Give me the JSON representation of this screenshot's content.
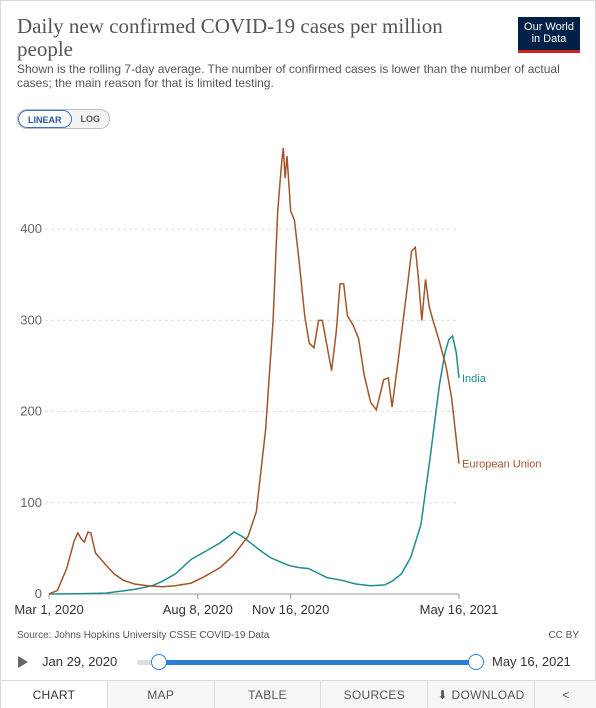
{
  "header": {
    "title": "Daily new confirmed COVID-19 cases per million people",
    "subtitle": "Shown is the rolling 7-day average. The number of confirmed cases is lower than the number of actual cases; the main reason for that is limited testing.",
    "logo_line1": "Our World",
    "logo_line2": "in Data"
  },
  "scale_toggle": {
    "linear": "LINEAR",
    "log": "LOG",
    "selected": "LINEAR"
  },
  "colors": {
    "india": "#1f8c8c",
    "eu": "#a25529",
    "grid": "#dddddd",
    "accent": "#2a80d4"
  },
  "chart_data": {
    "type": "line",
    "x_start": "2020-03-01",
    "x_end": "2021-05-16",
    "xticks": [
      "Mar 1, 2020",
      "Aug 8, 2020",
      "Nov 16, 2020",
      "May 16, 2021"
    ],
    "yticks": [
      0,
      100,
      200,
      300,
      400
    ],
    "ylim": [
      0,
      500
    ],
    "grid": true,
    "legend": "inline-right",
    "series": [
      {
        "name": "India",
        "points": [
          [
            "2020-03-01",
            0
          ],
          [
            "2020-04-01",
            0.2
          ],
          [
            "2020-05-01",
            1
          ],
          [
            "2020-06-01",
            5
          ],
          [
            "2020-06-20",
            9
          ],
          [
            "2020-07-01",
            14
          ],
          [
            "2020-07-15",
            22
          ],
          [
            "2020-08-01",
            38
          ],
          [
            "2020-08-15",
            46
          ],
          [
            "2020-09-01",
            56
          ],
          [
            "2020-09-10",
            63
          ],
          [
            "2020-09-16",
            68
          ],
          [
            "2020-09-25",
            63
          ],
          [
            "2020-10-05",
            55
          ],
          [
            "2020-10-15",
            47
          ],
          [
            "2020-10-25",
            40
          ],
          [
            "2020-11-05",
            35
          ],
          [
            "2020-11-15",
            31
          ],
          [
            "2020-11-25",
            29
          ],
          [
            "2020-12-05",
            28
          ],
          [
            "2020-12-15",
            23
          ],
          [
            "2020-12-25",
            18
          ],
          [
            "2021-01-10",
            15
          ],
          [
            "2021-01-25",
            11
          ],
          [
            "2021-02-10",
            9
          ],
          [
            "2021-02-25",
            10
          ],
          [
            "2021-03-05",
            14
          ],
          [
            "2021-03-15",
            22
          ],
          [
            "2021-03-25",
            40
          ],
          [
            "2021-04-05",
            76
          ],
          [
            "2021-04-15",
            150
          ],
          [
            "2021-04-25",
            230
          ],
          [
            "2021-05-01",
            265
          ],
          [
            "2021-05-05",
            279
          ],
          [
            "2021-05-09",
            283
          ],
          [
            "2021-05-13",
            265
          ],
          [
            "2021-05-16",
            237
          ]
        ]
      },
      {
        "name": "European Union",
        "points": [
          [
            "2020-03-01",
            0
          ],
          [
            "2020-03-10",
            4
          ],
          [
            "2020-03-20",
            28
          ],
          [
            "2020-03-28",
            58
          ],
          [
            "2020-04-01",
            67
          ],
          [
            "2020-04-05",
            60
          ],
          [
            "2020-04-08",
            57
          ],
          [
            "2020-04-12",
            68
          ],
          [
            "2020-04-15",
            67
          ],
          [
            "2020-04-20",
            45
          ],
          [
            "2020-05-01",
            32
          ],
          [
            "2020-05-10",
            22
          ],
          [
            "2020-05-20",
            15
          ],
          [
            "2020-06-01",
            11
          ],
          [
            "2020-06-15",
            9
          ],
          [
            "2020-07-01",
            8
          ],
          [
            "2020-07-15",
            9
          ],
          [
            "2020-08-01",
            12
          ],
          [
            "2020-08-15",
            19
          ],
          [
            "2020-09-01",
            29
          ],
          [
            "2020-09-15",
            42
          ],
          [
            "2020-10-01",
            63
          ],
          [
            "2020-10-10",
            90
          ],
          [
            "2020-10-20",
            180
          ],
          [
            "2020-10-28",
            300
          ],
          [
            "2020-11-02",
            420
          ],
          [
            "2020-11-06",
            470
          ],
          [
            "2020-11-08",
            489
          ],
          [
            "2020-11-10",
            456
          ],
          [
            "2020-11-12",
            480
          ],
          [
            "2020-11-16",
            420
          ],
          [
            "2020-11-20",
            410
          ],
          [
            "2020-11-25",
            365
          ],
          [
            "2020-12-01",
            305
          ],
          [
            "2020-12-06",
            275
          ],
          [
            "2020-12-11",
            270
          ],
          [
            "2020-12-16",
            300
          ],
          [
            "2020-12-20",
            300
          ],
          [
            "2020-12-25",
            272
          ],
          [
            "2020-12-30",
            245
          ],
          [
            "2021-01-04",
            288
          ],
          [
            "2021-01-08",
            340
          ],
          [
            "2021-01-12",
            340
          ],
          [
            "2021-01-16",
            305
          ],
          [
            "2021-01-22",
            295
          ],
          [
            "2021-01-28",
            280
          ],
          [
            "2021-02-03",
            240
          ],
          [
            "2021-02-10",
            210
          ],
          [
            "2021-02-16",
            202
          ],
          [
            "2021-02-24",
            235
          ],
          [
            "2021-03-01",
            237
          ],
          [
            "2021-03-05",
            205
          ],
          [
            "2021-03-12",
            260
          ],
          [
            "2021-03-20",
            325
          ],
          [
            "2021-03-26",
            376
          ],
          [
            "2021-03-30",
            380
          ],
          [
            "2021-04-02",
            350
          ],
          [
            "2021-04-06",
            300
          ],
          [
            "2021-04-10",
            345
          ],
          [
            "2021-04-14",
            315
          ],
          [
            "2021-04-18",
            300
          ],
          [
            "2021-04-24",
            280
          ],
          [
            "2021-05-02",
            250
          ],
          [
            "2021-05-08",
            215
          ],
          [
            "2021-05-16",
            143
          ]
        ]
      }
    ]
  },
  "source": "Source: Johns Hopkins University CSSE COVID-19 Data",
  "license": "CC BY",
  "timeline": {
    "start": "Jan 29, 2020",
    "end": "May 16, 2021",
    "start_fraction": 0.065,
    "end_fraction": 1.0
  },
  "tabs": [
    {
      "label": "CHART",
      "active": true
    },
    {
      "label": "MAP",
      "active": false
    },
    {
      "label": "TABLE",
      "active": false
    },
    {
      "label": "SOURCES",
      "active": false
    },
    {
      "label": "⬇ DOWNLOAD",
      "active": false
    }
  ],
  "share_icon": "share-icon"
}
